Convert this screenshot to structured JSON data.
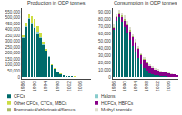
{
  "chart_data": [
    {
      "type": "bar",
      "title": "Production in ODP tonnes",
      "categories": [
        "1986",
        null,
        null,
        null,
        "1990",
        null,
        null,
        null,
        "1994",
        null,
        null,
        null,
        "1998",
        null,
        null,
        null,
        "2002",
        null,
        null,
        null,
        "2006",
        null,
        null,
        null
      ],
      "series": [
        {
          "name": "CFCs",
          "color": "#006b6b",
          "values": [
            330000,
            420000,
            490000,
            450000,
            410000,
            370000,
            330000,
            270000,
            220000,
            170000,
            100000,
            70000,
            45000,
            25000,
            15000,
            10000,
            7000,
            5000,
            4000,
            3000,
            2500,
            2000,
            1500,
            800
          ]
        },
        {
          "name": "Halons",
          "color": "#88cccc",
          "values": [
            5000,
            6000,
            8000,
            9000,
            12000,
            10000,
            8000,
            5000,
            3000,
            2000,
            1000,
            500,
            300,
            200,
            100,
            80,
            60,
            40,
            30,
            20,
            15,
            10,
            5,
            2
          ]
        },
        {
          "name": "Other CFCs, CTCs, MBCs",
          "color": "#ccdd44",
          "values": [
            20000,
            30000,
            40000,
            50000,
            70000,
            50000,
            35000,
            20000,
            12000,
            7000,
            4000,
            3000,
            2500,
            2000,
            1500,
            1200,
            1000,
            800,
            700,
            600,
            500,
            400,
            300,
            200
          ]
        }
      ],
      "ylim": [
        -15000,
        580000
      ],
      "yticks": [
        0,
        {
          "value": 50000,
          "label": "50,000"
        },
        {
          "value": 100000,
          "label": "100,000"
        },
        {
          "value": 150000,
          "label": "150,000"
        },
        {
          "value": 200000,
          "label": "200,000"
        },
        {
          "value": 250000,
          "label": "250,000"
        },
        {
          "value": 300000,
          "label": "300,000"
        },
        {
          "value": 350000,
          "label": "350,000"
        },
        {
          "value": 400000,
          "label": "400,000"
        },
        {
          "value": 450000,
          "label": "450,000"
        },
        {
          "value": 500000,
          "label": "500,000"
        },
        {
          "value": 550000,
          "label": "550,000"
        }
      ],
      "stacked": true,
      "grid": false,
      "legend": "bottom"
    },
    {
      "type": "bar",
      "title": "Consumption in ODP tonnes",
      "categories": [
        "1986",
        null,
        null,
        null,
        "1990",
        null,
        null,
        null,
        "1994",
        null,
        null,
        null,
        "1998",
        null,
        null,
        null,
        "2002",
        null,
        null,
        null,
        "2006",
        null,
        null,
        null
      ],
      "series": [
        {
          "name": "CFCs",
          "color": "#006b6b",
          "values": [
            65000,
            78000,
            82000,
            76000,
            69000,
            61000,
            52000,
            43000,
            35000,
            26000,
            18000,
            13000,
            9000,
            6000,
            4500,
            3500,
            2800,
            2200,
            1700,
            1200,
            900,
            650,
            450,
            250
          ]
        },
        {
          "name": "HCFCs, HBFCs",
          "color": "#880088",
          "values": [
            3000,
            4000,
            5000,
            7000,
            9000,
            10000,
            11000,
            12000,
            13000,
            13000,
            12000,
            11000,
            10000,
            9000,
            8000,
            7000,
            6500,
            6000,
            5500,
            5000,
            4500,
            4000,
            3500,
            2500
          ]
        },
        {
          "name": "Brominated/chlorinated/flames",
          "color": "#aabb66",
          "values": [
            1000,
            1200,
            1500,
            1800,
            2000,
            2200,
            2000,
            1800,
            1500,
            1200,
            1000,
            900,
            800,
            700,
            600,
            500,
            400,
            350,
            300,
            250,
            200,
            150,
            100,
            60
          ]
        },
        {
          "name": "Methyl bromide",
          "color": "#ddddcc",
          "values": [
            3000,
            3500,
            4000,
            4500,
            5000,
            5000,
            4500,
            4000,
            3500,
            3000,
            2800,
            2500,
            2200,
            2000,
            1800,
            1600,
            1400,
            1200,
            1000,
            800,
            600,
            400,
            300,
            150
          ]
        }
      ],
      "ylim": [
        -2000,
        95000
      ],
      "yticks": [
        0,
        {
          "value": 10000,
          "label": "10,000"
        },
        {
          "value": 20000,
          "label": "20,000"
        },
        {
          "value": 30000,
          "label": "30,000"
        },
        {
          "value": 40000,
          "label": "40,000"
        },
        {
          "value": 50000,
          "label": "50,000"
        },
        {
          "value": 60000,
          "label": "60,000"
        },
        {
          "value": 70000,
          "label": "70,000"
        },
        {
          "value": 80000,
          "label": "80,000"
        },
        {
          "value": 90000,
          "label": "90,000"
        }
      ],
      "stacked": true,
      "grid": false,
      "legend": "bottom"
    }
  ]
}
